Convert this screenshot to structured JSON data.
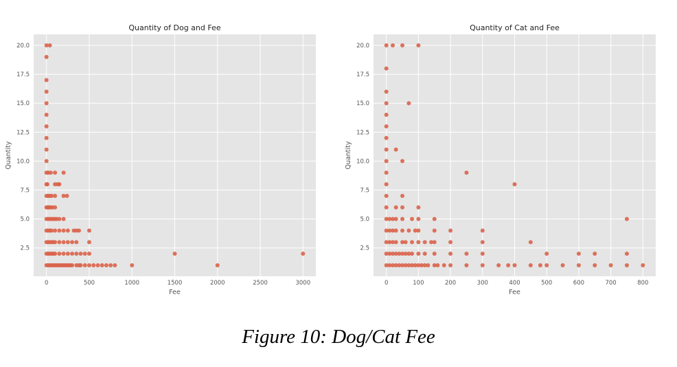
{
  "figure_caption": "Figure 10: Dog/Cat Fee",
  "colors": {
    "background": "#e5e5e5",
    "grid": "#ffffff",
    "marker": "#d9634a",
    "text": "#555555",
    "title": "#222222"
  },
  "chart_data": [
    {
      "type": "scatter",
      "title": "Quantity of Dog and Fee",
      "xlabel": "Fee",
      "ylabel": "Quantity",
      "xlim": [
        -150,
        3150
      ],
      "ylim": [
        0.05,
        20.95
      ],
      "xticks": [
        0,
        500,
        1000,
        1500,
        2000,
        2500,
        3000
      ],
      "yticks": [
        2.5,
        5.0,
        7.5,
        10.0,
        12.5,
        15.0,
        17.5,
        20.0
      ],
      "ytick_labels": [
        "2.5",
        "5.0",
        "7.5",
        "10.0",
        "12.5",
        "15.0",
        "17.5",
        "20.0"
      ],
      "grid": true,
      "points": [
        [
          0,
          20
        ],
        [
          40,
          20
        ],
        [
          0,
          19
        ],
        [
          0,
          17
        ],
        [
          0,
          16
        ],
        [
          0,
          15
        ],
        [
          0,
          14
        ],
        [
          0,
          13
        ],
        [
          0,
          12
        ],
        [
          0,
          11
        ],
        [
          0,
          10
        ],
        [
          0,
          9
        ],
        [
          20,
          9
        ],
        [
          50,
          9
        ],
        [
          100,
          9
        ],
        [
          200,
          9
        ],
        [
          0,
          8
        ],
        [
          10,
          8
        ],
        [
          100,
          8
        ],
        [
          130,
          8
        ],
        [
          150,
          8
        ],
        [
          0,
          7
        ],
        [
          20,
          7
        ],
        [
          40,
          7
        ],
        [
          60,
          7
        ],
        [
          100,
          7
        ],
        [
          200,
          7
        ],
        [
          240,
          7
        ],
        [
          0,
          6
        ],
        [
          10,
          6
        ],
        [
          20,
          6
        ],
        [
          30,
          6
        ],
        [
          50,
          6
        ],
        [
          70,
          6
        ],
        [
          100,
          6
        ],
        [
          0,
          5
        ],
        [
          20,
          5
        ],
        [
          40,
          5
        ],
        [
          60,
          5
        ],
        [
          80,
          5
        ],
        [
          100,
          5
        ],
        [
          120,
          5
        ],
        [
          150,
          5
        ],
        [
          200,
          5
        ],
        [
          0,
          4
        ],
        [
          20,
          4
        ],
        [
          40,
          4
        ],
        [
          60,
          4
        ],
        [
          100,
          4
        ],
        [
          150,
          4
        ],
        [
          200,
          4
        ],
        [
          250,
          4
        ],
        [
          320,
          4
        ],
        [
          350,
          4
        ],
        [
          380,
          4
        ],
        [
          500,
          4
        ],
        [
          0,
          3
        ],
        [
          20,
          3
        ],
        [
          40,
          3
        ],
        [
          60,
          3
        ],
        [
          80,
          3
        ],
        [
          100,
          3
        ],
        [
          150,
          3
        ],
        [
          200,
          3
        ],
        [
          250,
          3
        ],
        [
          300,
          3
        ],
        [
          350,
          3
        ],
        [
          500,
          3
        ],
        [
          0,
          2
        ],
        [
          20,
          2
        ],
        [
          40,
          2
        ],
        [
          60,
          2
        ],
        [
          80,
          2
        ],
        [
          100,
          2
        ],
        [
          150,
          2
        ],
        [
          200,
          2
        ],
        [
          250,
          2
        ],
        [
          300,
          2
        ],
        [
          350,
          2
        ],
        [
          400,
          2
        ],
        [
          450,
          2
        ],
        [
          500,
          2
        ],
        [
          1500,
          2
        ],
        [
          3000,
          2
        ],
        [
          0,
          1
        ],
        [
          20,
          1
        ],
        [
          40,
          1
        ],
        [
          60,
          1
        ],
        [
          80,
          1
        ],
        [
          100,
          1
        ],
        [
          120,
          1
        ],
        [
          140,
          1
        ],
        [
          160,
          1
        ],
        [
          180,
          1
        ],
        [
          200,
          1
        ],
        [
          220,
          1
        ],
        [
          240,
          1
        ],
        [
          260,
          1
        ],
        [
          280,
          1
        ],
        [
          300,
          1
        ],
        [
          350,
          1
        ],
        [
          380,
          1
        ],
        [
          400,
          1
        ],
        [
          450,
          1
        ],
        [
          500,
          1
        ],
        [
          550,
          1
        ],
        [
          600,
          1
        ],
        [
          650,
          1
        ],
        [
          700,
          1
        ],
        [
          750,
          1
        ],
        [
          800,
          1
        ],
        [
          1000,
          1
        ],
        [
          2000,
          1
        ]
      ]
    },
    {
      "type": "scatter",
      "title": "Quantity of Cat and Fee",
      "xlabel": "Fee",
      "ylabel": "Quantity",
      "xlim": [
        -40,
        840
      ],
      "ylim": [
        0.05,
        20.95
      ],
      "xticks": [
        0,
        100,
        200,
        300,
        400,
        500,
        600,
        700,
        800
      ],
      "yticks": [
        2.5,
        5.0,
        7.5,
        10.0,
        12.5,
        15.0,
        17.5,
        20.0
      ],
      "ytick_labels": [
        "2.5",
        "5.0",
        "7.5",
        "10.0",
        "12.5",
        "15.0",
        "17.5",
        "20.0"
      ],
      "grid": true,
      "points": [
        [
          0,
          20
        ],
        [
          20,
          20
        ],
        [
          50,
          20
        ],
        [
          100,
          20
        ],
        [
          0,
          18
        ],
        [
          0,
          16
        ],
        [
          0,
          15
        ],
        [
          70,
          15
        ],
        [
          0,
          14
        ],
        [
          0,
          13
        ],
        [
          0,
          12
        ],
        [
          0,
          11
        ],
        [
          30,
          11
        ],
        [
          0,
          10
        ],
        [
          50,
          10
        ],
        [
          0,
          9
        ],
        [
          250,
          9
        ],
        [
          0,
          8
        ],
        [
          400,
          8
        ],
        [
          0,
          7
        ],
        [
          50,
          7
        ],
        [
          0,
          6
        ],
        [
          30,
          6
        ],
        [
          50,
          6
        ],
        [
          100,
          6
        ],
        [
          0,
          5
        ],
        [
          10,
          5
        ],
        [
          20,
          5
        ],
        [
          30,
          5
        ],
        [
          50,
          5
        ],
        [
          80,
          5
        ],
        [
          100,
          5
        ],
        [
          150,
          5
        ],
        [
          750,
          5
        ],
        [
          0,
          4
        ],
        [
          10,
          4
        ],
        [
          20,
          4
        ],
        [
          30,
          4
        ],
        [
          50,
          4
        ],
        [
          70,
          4
        ],
        [
          90,
          4
        ],
        [
          100,
          4
        ],
        [
          150,
          4
        ],
        [
          200,
          4
        ],
        [
          300,
          4
        ],
        [
          0,
          3
        ],
        [
          10,
          3
        ],
        [
          20,
          3
        ],
        [
          30,
          3
        ],
        [
          50,
          3
        ],
        [
          60,
          3
        ],
        [
          80,
          3
        ],
        [
          100,
          3
        ],
        [
          120,
          3
        ],
        [
          140,
          3
        ],
        [
          150,
          3
        ],
        [
          200,
          3
        ],
        [
          300,
          3
        ],
        [
          450,
          3
        ],
        [
          0,
          2
        ],
        [
          10,
          2
        ],
        [
          20,
          2
        ],
        [
          30,
          2
        ],
        [
          40,
          2
        ],
        [
          50,
          2
        ],
        [
          60,
          2
        ],
        [
          70,
          2
        ],
        [
          80,
          2
        ],
        [
          100,
          2
        ],
        [
          120,
          2
        ],
        [
          150,
          2
        ],
        [
          200,
          2
        ],
        [
          250,
          2
        ],
        [
          300,
          2
        ],
        [
          500,
          2
        ],
        [
          600,
          2
        ],
        [
          650,
          2
        ],
        [
          750,
          2
        ],
        [
          0,
          1
        ],
        [
          10,
          1
        ],
        [
          20,
          1
        ],
        [
          30,
          1
        ],
        [
          40,
          1
        ],
        [
          50,
          1
        ],
        [
          60,
          1
        ],
        [
          70,
          1
        ],
        [
          80,
          1
        ],
        [
          90,
          1
        ],
        [
          100,
          1
        ],
        [
          110,
          1
        ],
        [
          120,
          1
        ],
        [
          130,
          1
        ],
        [
          150,
          1
        ],
        [
          160,
          1
        ],
        [
          180,
          1
        ],
        [
          200,
          1
        ],
        [
          250,
          1
        ],
        [
          300,
          1
        ],
        [
          350,
          1
        ],
        [
          380,
          1
        ],
        [
          400,
          1
        ],
        [
          450,
          1
        ],
        [
          480,
          1
        ],
        [
          500,
          1
        ],
        [
          550,
          1
        ],
        [
          600,
          1
        ],
        [
          650,
          1
        ],
        [
          700,
          1
        ],
        [
          750,
          1
        ],
        [
          800,
          1
        ]
      ]
    }
  ]
}
